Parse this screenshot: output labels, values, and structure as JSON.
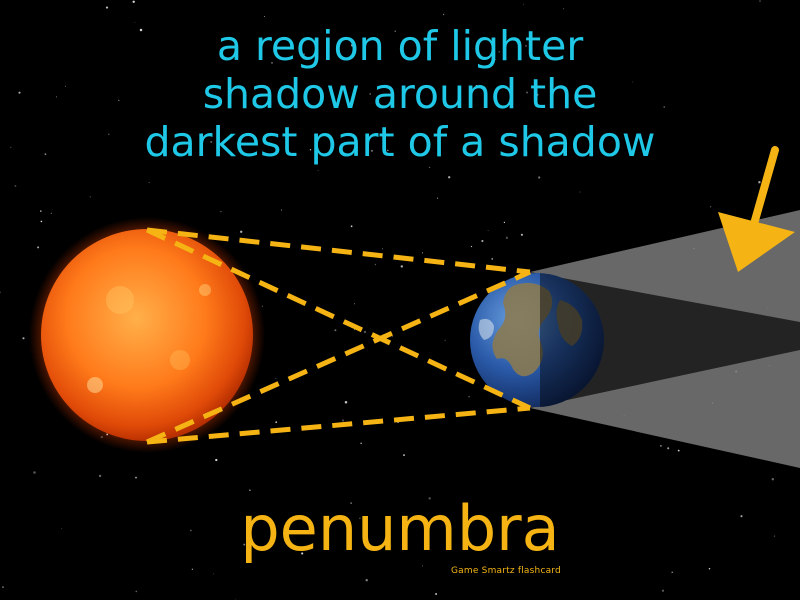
{
  "definition": {
    "lines": [
      "a region of lighter",
      "shadow around the",
      "darkest part of a shadow"
    ]
  },
  "term": "penumbra",
  "credit": "Game Smartz  flashcard",
  "colors": {
    "background": "#000000",
    "definition_text": "#1ec8e6",
    "term_text": "#f5b414",
    "arrow": "#f5b414",
    "dashed_lines": "#f5b414",
    "penumbra_shadow": "#7a7a7a",
    "umbra_shadow": "#262626"
  },
  "icons": {
    "sun": "sun-icon",
    "earth": "earth-icon",
    "arrow": "arrow-down-left-icon"
  }
}
